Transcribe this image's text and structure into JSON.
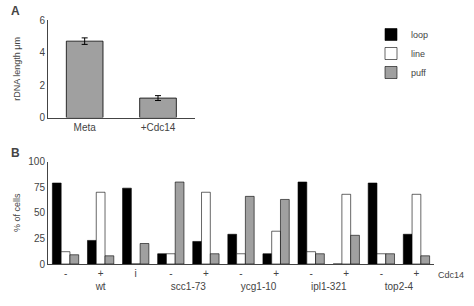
{
  "chart_data": [
    {
      "type": "bar",
      "categories": [
        "Meta",
        "+Cdc14"
      ],
      "values": [
        4.7,
        1.2
      ],
      "errors": [
        0.2,
        0.15
      ],
      "color": "#a0a0a0",
      "ylabel": "rDNA length μm",
      "ylim": [
        0,
        6
      ],
      "yticks": [
        0,
        2,
        4,
        6
      ],
      "grid": false,
      "annotations": [
        "A"
      ]
    },
    {
      "type": "bar",
      "categories": [
        "-",
        "+",
        "i",
        "-",
        "+",
        "-",
        "+",
        "-",
        "+",
        "-",
        "+"
      ],
      "groups": [
        {
          "label": "wt",
          "size": 3
        },
        {
          "label": "scc1-73",
          "size": 2
        },
        {
          "label": "ycg1-10",
          "size": 2
        },
        {
          "label": "ipl1-321",
          "size": 2
        },
        {
          "label": "top2-4",
          "size": 2
        }
      ],
      "series": [
        {
          "name": "loop",
          "color": "#000000",
          "values": [
            79,
            23,
            74,
            10,
            22,
            29,
            10,
            80,
            0,
            79,
            29
          ]
        },
        {
          "name": "line",
          "color": "#ffffff",
          "values": [
            12,
            70,
            0,
            10,
            70,
            10,
            32,
            12,
            68,
            10,
            68
          ]
        },
        {
          "name": "puff",
          "color": "#a0a0a0",
          "values": [
            9,
            8,
            20,
            80,
            10,
            66,
            63,
            10,
            28,
            10,
            8
          ]
        }
      ],
      "ylabel": "% of cells",
      "ylim": [
        0,
        100
      ],
      "yticks": [
        0,
        25,
        50,
        75,
        100
      ],
      "grid": false,
      "legend": "upper right",
      "annotations": [
        "B",
        "Cdc14"
      ]
    }
  ]
}
